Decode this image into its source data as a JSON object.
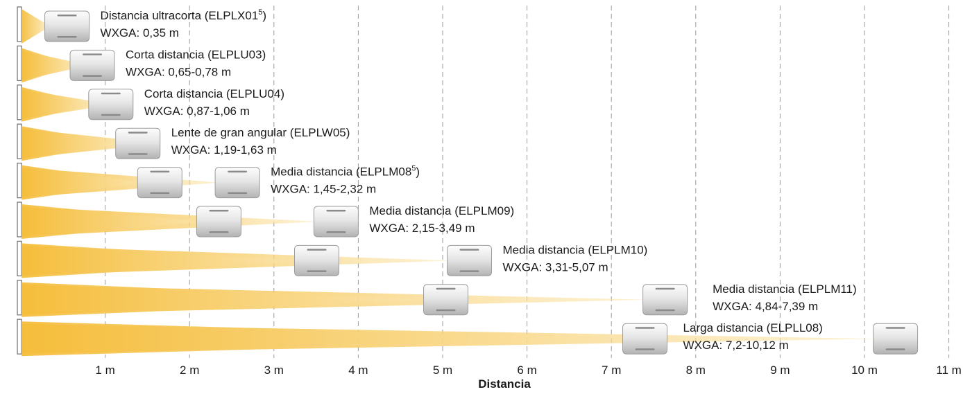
{
  "chart_data": {
    "type": "throw-distance-diagram",
    "xlabel": "Distancia",
    "xlim": [
      0,
      11
    ],
    "grid": true,
    "tick_labels": [
      "1 m",
      "2 m",
      "3 m",
      "4 m",
      "5 m",
      "6 m",
      "7 m",
      "8 m",
      "9 m",
      "10 m",
      "11 m"
    ],
    "beam_color": "#f6c143",
    "lenses": [
      {
        "name": "Distancia ultracorta (ELPLX01",
        "sup": "5",
        "close": ")",
        "range": "WXGA: 0,35 m",
        "min_m": 0.35,
        "max_m": null
      },
      {
        "name": "Corta distancia (ELPLU03)",
        "sup": "",
        "close": "",
        "range": "WXGA: 0,65-0,78 m",
        "min_m": 0.65,
        "max_m": 0.78
      },
      {
        "name": "Corta distancia (ELPLU04)",
        "sup": "",
        "close": "",
        "range": "WXGA: 0,87-1,06 m",
        "min_m": 0.87,
        "max_m": 1.06
      },
      {
        "name": "Lente de gran angular (ELPLW05)",
        "sup": "",
        "close": "",
        "range": "WXGA: 1,19-1,63 m",
        "min_m": 1.19,
        "max_m": 1.63
      },
      {
        "name": "Media distancia (ELPLM08",
        "sup": "5",
        "close": ")",
        "range": "WXGA: 1,45-2,32 m",
        "min_m": 1.45,
        "max_m": 2.32
      },
      {
        "name": "Media distancia (ELPLM09)",
        "sup": "",
        "close": "",
        "range": "WXGA: 2,15-3,49 m",
        "min_m": 2.15,
        "max_m": 3.49
      },
      {
        "name": "Media distancia (ELPLM10)",
        "sup": "",
        "close": "",
        "range": "WXGA: 3,31-5,07 m",
        "min_m": 3.31,
        "max_m": 5.07
      },
      {
        "name": "Media distancia (ELPLM11)",
        "sup": "",
        "close": "",
        "range": "WXGA: 4,84-7,39 m",
        "min_m": 4.84,
        "max_m": 7.39
      },
      {
        "name": "Larga distancia (ELPLL08)",
        "sup": "",
        "close": "",
        "range": "WXGA: 7,2-10,12 m",
        "min_m": 7.2,
        "max_m": 10.12
      }
    ]
  }
}
